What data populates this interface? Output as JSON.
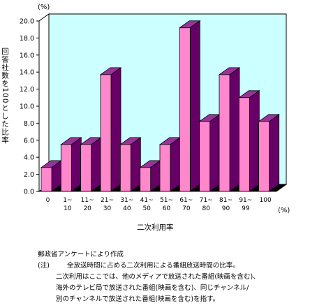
{
  "chart_data": {
    "type": "bar",
    "ylabel": "回答社数を100とした比率",
    "y_unit": "(%)",
    "xlabel": "二次利用率",
    "x_unit": "(%)",
    "ylim": [
      0,
      20
    ],
    "yticks": [
      "0.0",
      "2.0",
      "4.0",
      "6.0",
      "8.0",
      "10.0",
      "12.0",
      "14.0",
      "16.0",
      "18.0",
      "20.0"
    ],
    "categories": [
      [
        "0"
      ],
      [
        "1~",
        "10"
      ],
      [
        "11~",
        "20"
      ],
      [
        "21~",
        "30"
      ],
      [
        "31~",
        "40"
      ],
      [
        "41~",
        "50"
      ],
      [
        "51~",
        "60"
      ],
      [
        "61~",
        "70"
      ],
      [
        "71~",
        "80"
      ],
      [
        "81~",
        "90"
      ],
      [
        "91~",
        "99"
      ],
      [
        "100"
      ]
    ],
    "values": [
      2.8,
      5.5,
      5.5,
      13.7,
      5.5,
      2.8,
      5.5,
      19.2,
      8.2,
      13.7,
      11.0,
      8.2
    ],
    "colors": {
      "bar_front": "#ff88cc",
      "bar_side": "#660066",
      "bar_top": "#993399",
      "plot_back": "#ccffff",
      "floor": "#000000"
    }
  },
  "notes": {
    "source": "郵政省アンケートにより作成",
    "note_label": "(注)",
    "note_line1": "全放送時間に占める二次利用による番組放送時間の比率。",
    "note_line2": "二次利用はここでは、他のメディアで放送された番組(映画を含む)、",
    "note_line3": "海外のテレビ局で放送された番組(映画を含む)、同じチャンネル/",
    "note_line4": "別のチャンネルで放送された番組(映画を含む)を指す。"
  }
}
